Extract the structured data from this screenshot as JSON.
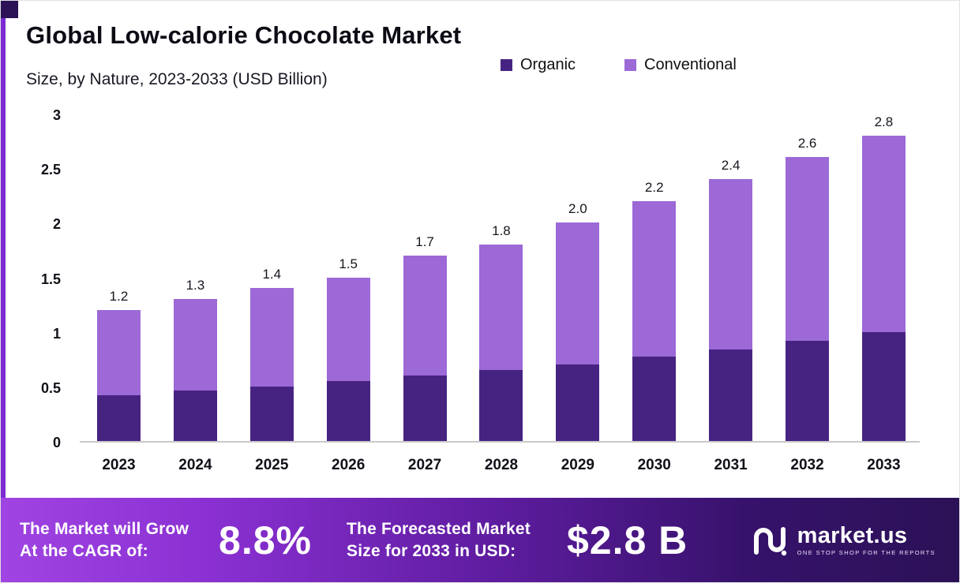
{
  "header": {
    "title": "Global Low-calorie Chocolate Market",
    "subtitle": "Size, by Nature, 2023-2033 (USD Billion)"
  },
  "chart_data": {
    "type": "bar",
    "stacked": true,
    "title": "Global Low-calorie Chocolate Market Size, by Nature, 2023-2033 (USD Billion)",
    "categories": [
      "2023",
      "2024",
      "2025",
      "2026",
      "2027",
      "2028",
      "2029",
      "2030",
      "2031",
      "2032",
      "2033"
    ],
    "series": [
      {
        "name": "Organic",
        "color": "#472381",
        "values": [
          0.42,
          0.46,
          0.5,
          0.55,
          0.6,
          0.65,
          0.7,
          0.77,
          0.84,
          0.92,
          1.0
        ]
      },
      {
        "name": "Conventional",
        "color": "#9c69d7",
        "values": [
          0.78,
          0.84,
          0.9,
          0.95,
          1.1,
          1.15,
          1.3,
          1.43,
          1.56,
          1.68,
          1.8
        ]
      }
    ],
    "totals_labels": [
      "1.2",
      "1.3",
      "1.4",
      "1.5",
      "1.7",
      "1.8",
      "2.0",
      "2.2",
      "2.4",
      "2.6",
      "2.8"
    ],
    "yticks": [
      "0",
      "0.5",
      "1",
      "1.5",
      "2",
      "2.5",
      "3"
    ],
    "ylim": [
      0,
      3
    ],
    "xlabel": "",
    "ylabel": "",
    "grid": false,
    "legend_position": "top-right"
  },
  "banner": {
    "cagr_label_line1": "The Market will Grow",
    "cagr_label_line2": "At the CAGR of:",
    "cagr_value": "8.8%",
    "forecast_label_line1": "The Forecasted Market",
    "forecast_label_line2": "Size for 2033 in USD:",
    "forecast_value": "$2.8 B",
    "logo_text": "market.us",
    "logo_tagline": "ONE STOP SHOP FOR THE REPORTS"
  },
  "colors": {
    "organic": "#472381",
    "conventional": "#9c69d7",
    "left_stripe": "#7c2bd3",
    "corner_accent": "#2c1157",
    "banner_gradient_start": "#a044e2",
    "banner_gradient_end": "#2b1156",
    "axis_line": "#c9c9c9"
  }
}
